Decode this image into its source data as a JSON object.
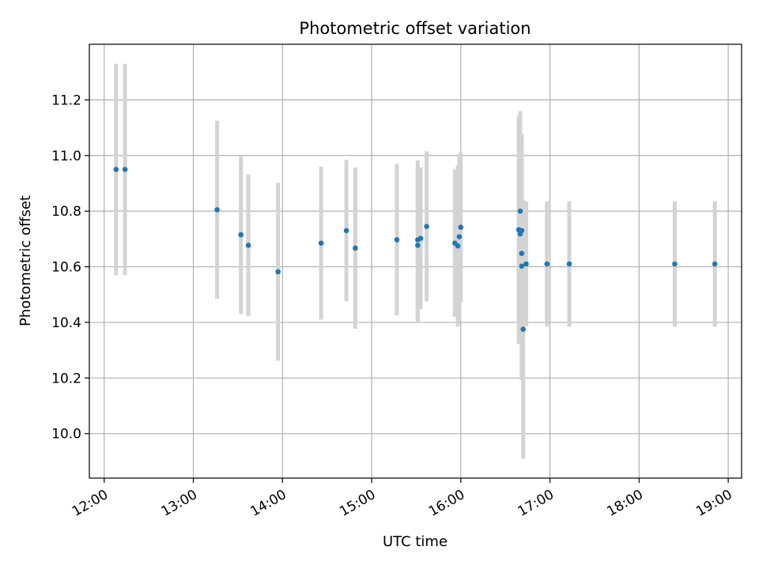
{
  "chart_data": {
    "type": "scatter",
    "title": "Photometric offset variation",
    "xlabel": "UTC time",
    "ylabel": "Photometric offset",
    "grid": true,
    "xlim": [
      "11:50",
      "19:09"
    ],
    "ylim": [
      9.84,
      11.4
    ],
    "x_ticks": [
      "12:00",
      "13:00",
      "14:00",
      "15:00",
      "16:00",
      "17:00",
      "18:00",
      "19:00"
    ],
    "y_ticks": [
      "10.0",
      "10.2",
      "10.4",
      "10.6",
      "10.8",
      "11.0",
      "11.2"
    ],
    "colors": {
      "point": "#1f77b4",
      "errorbar": "#d3d3d3",
      "grid": "#b0b0b0"
    },
    "points": [
      {
        "x": "12:08",
        "y": 10.95,
        "yerr": 0.38
      },
      {
        "x": "12:14",
        "y": 10.95,
        "yerr": 0.38
      },
      {
        "x": "13:16",
        "y": 10.805,
        "yerr": 0.32
      },
      {
        "x": "13:32",
        "y": 10.715,
        "yerr": 0.285
      },
      {
        "x": "13:37",
        "y": 10.677,
        "yerr": 0.255
      },
      {
        "x": "13:57",
        "y": 10.582,
        "yerr": 0.32
      },
      {
        "x": "14:26",
        "y": 10.685,
        "yerr": 0.275
      },
      {
        "x": "14:43",
        "y": 10.73,
        "yerr": 0.255
      },
      {
        "x": "14:49",
        "y": 10.667,
        "yerr": 0.29
      },
      {
        "x": "15:17",
        "y": 10.697,
        "yerr": 0.272
      },
      {
        "x": "15:31",
        "y": 10.697,
        "yerr": 0.285
      },
      {
        "x": "15:31",
        "y": 10.677,
        "yerr": 0.28
      },
      {
        "x": "15:33",
        "y": 10.702,
        "yerr": 0.255
      },
      {
        "x": "15:37",
        "y": 10.745,
        "yerr": 0.27
      },
      {
        "x": "15:56",
        "y": 10.685,
        "yerr": 0.265
      },
      {
        "x": "15:58",
        "y": 10.675,
        "yerr": 0.29
      },
      {
        "x": "15:59",
        "y": 10.708,
        "yerr": 0.3
      },
      {
        "x": "16:00",
        "y": 10.742,
        "yerr": 0.27
      },
      {
        "x": "16:39",
        "y": 10.733,
        "yerr": 0.41
      },
      {
        "x": "16:40",
        "y": 10.8,
        "yerr": 0.36
      },
      {
        "x": "16:40",
        "y": 10.718,
        "yerr": 0.32
      },
      {
        "x": "16:41",
        "y": 10.73,
        "yerr": 0.33
      },
      {
        "x": "16:41",
        "y": 10.648,
        "yerr": 0.43
      },
      {
        "x": "16:41",
        "y": 10.602,
        "yerr": 0.41
      },
      {
        "x": "16:42",
        "y": 10.375,
        "yerr": 0.465
      },
      {
        "x": "16:44",
        "y": 10.61,
        "yerr": 0.225
      },
      {
        "x": "16:58",
        "y": 10.61,
        "yerr": 0.225
      },
      {
        "x": "17:13",
        "y": 10.61,
        "yerr": 0.225
      },
      {
        "x": "18:24",
        "y": 10.61,
        "yerr": 0.225
      },
      {
        "x": "18:51",
        "y": 10.61,
        "yerr": 0.225
      }
    ]
  }
}
